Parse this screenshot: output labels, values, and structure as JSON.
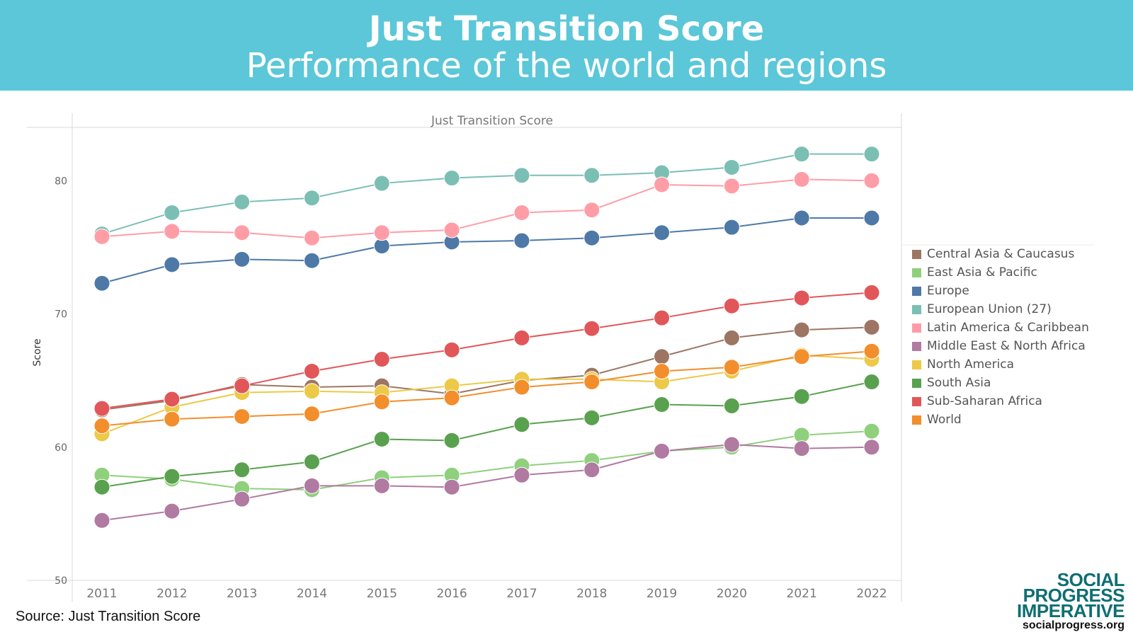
{
  "header": {
    "title": "Just Transition Score",
    "subtitle": "Performance of the world and regions"
  },
  "footer": {
    "source": "Source: Just Transition Score",
    "logo_line1": "SOCIAL",
    "logo_line2": "PROGRESS",
    "logo_line3": "IMPERATIVE",
    "logo_url": "socialprogress.org"
  },
  "chart_data": {
    "type": "line",
    "title": "Just Transition Score",
    "xlabel": "",
    "ylabel": "Score",
    "ylim": [
      50,
      84
    ],
    "yticks": [
      50,
      60,
      70,
      80
    ],
    "grid": false,
    "legend_position": "right",
    "x": [
      2011,
      2012,
      2013,
      2014,
      2015,
      2016,
      2017,
      2018,
      2019,
      2020,
      2021,
      2022
    ],
    "series": [
      {
        "name": "Central Asia & Caucasus",
        "color": "#9c7663",
        "values": [
          62.8,
          63.5,
          64.7,
          64.5,
          64.6,
          64.0,
          65.0,
          65.4,
          66.8,
          68.2,
          68.8,
          69.0
        ]
      },
      {
        "name": "East Asia & Pacific",
        "color": "#8fd07d",
        "values": [
          57.9,
          57.6,
          56.9,
          56.8,
          57.7,
          57.9,
          58.6,
          59.0,
          59.7,
          60.0,
          60.9,
          61.2
        ]
      },
      {
        "name": "Europe",
        "color": "#4e79a7",
        "values": [
          72.3,
          73.7,
          74.1,
          74.0,
          75.1,
          75.4,
          75.5,
          75.7,
          76.1,
          76.5,
          77.2,
          77.2
        ]
      },
      {
        "name": "European Union (27)",
        "color": "#7bbfb4",
        "values": [
          76.0,
          77.6,
          78.4,
          78.7,
          79.8,
          80.2,
          80.4,
          80.4,
          80.6,
          81.0,
          82.0,
          82.0
        ]
      },
      {
        "name": "Latin America & Caribbean",
        "color": "#ff9da7",
        "values": [
          75.8,
          76.2,
          76.1,
          75.7,
          76.1,
          76.3,
          77.6,
          77.8,
          79.7,
          79.6,
          80.1,
          80.0
        ]
      },
      {
        "name": "Middle East & North Africa",
        "color": "#b07aa1",
        "values": [
          54.5,
          55.2,
          56.1,
          57.1,
          57.1,
          57.0,
          57.9,
          58.3,
          59.7,
          60.2,
          59.9,
          60.0
        ]
      },
      {
        "name": "North America",
        "color": "#edc948",
        "values": [
          61.0,
          63.0,
          64.1,
          64.2,
          64.1,
          64.6,
          65.1,
          65.1,
          64.9,
          65.7,
          66.9,
          66.6
        ]
      },
      {
        "name": "South Asia",
        "color": "#59a14f",
        "values": [
          57.0,
          57.8,
          58.3,
          58.9,
          60.6,
          60.5,
          61.7,
          62.2,
          63.2,
          63.1,
          63.8,
          64.9
        ]
      },
      {
        "name": "Sub-Saharan Africa",
        "color": "#e15759",
        "values": [
          62.9,
          63.6,
          64.6,
          65.7,
          66.6,
          67.3,
          68.2,
          68.9,
          69.7,
          70.6,
          71.2,
          71.6
        ]
      },
      {
        "name": "World",
        "color": "#f28e2b",
        "values": [
          61.6,
          62.1,
          62.3,
          62.5,
          63.4,
          63.7,
          64.5,
          64.9,
          65.7,
          66.0,
          66.8,
          67.2
        ]
      }
    ]
  }
}
